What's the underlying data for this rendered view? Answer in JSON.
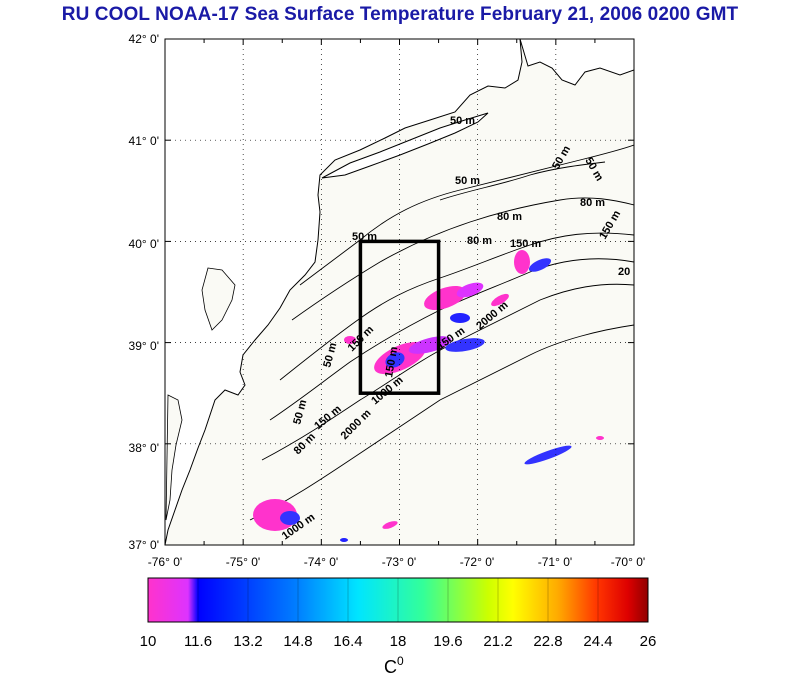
{
  "title": "RU COOL  NOAA-17 Sea Surface Temperature February 21, 2006 0200 GMT",
  "map": {
    "lon_ticks": [
      "-76° 0'",
      "-75° 0'",
      "-74° 0'",
      "-73° 0'",
      "-72° 0'",
      "-71° 0'",
      "-70° 0'"
    ],
    "lat_ticks": [
      "42° 0'",
      "41° 0'",
      "40° 0'",
      "39° 0'",
      "38° 0'",
      "37° 0'"
    ],
    "lon_range": [
      -76,
      -70
    ],
    "lat_range": [
      37,
      42
    ],
    "grid": "dotted",
    "study_box": {
      "lon": [
        -73.5,
        -72.5
      ],
      "lat": [
        38.5,
        40.0
      ]
    },
    "contour_labels": [
      "50 m",
      "50 m",
      "50 m",
      "50 m",
      "50 m",
      "80 m",
      "80 m",
      "80 m",
      "150 m",
      "150 m",
      "150 m",
      "150 m",
      "150 m",
      "1000 m",
      "2000 m",
      "2000 m",
      "1000 m",
      "20",
      "50 m",
      "50 m",
      "80 m",
      "150 m"
    ]
  },
  "colorbar": {
    "ticks": [
      "10",
      "11.6",
      "13.2",
      "14.8",
      "16.4",
      "18",
      "19.6",
      "21.2",
      "22.8",
      "24.4",
      "26"
    ],
    "unit_base": "C",
    "unit_sup": "0",
    "range": [
      10,
      26
    ],
    "colors": [
      "#ff33cc",
      "#cc33ff",
      "#0000ff",
      "#0080ff",
      "#00e5ff",
      "#33ff99",
      "#66ff00",
      "#ffff00",
      "#ffaa00",
      "#ff5500",
      "#ff0000",
      "#a00000"
    ]
  },
  "colors": {
    "title": "#1a1aa6",
    "land": "#ffffff",
    "sea": "#fafaf5"
  }
}
